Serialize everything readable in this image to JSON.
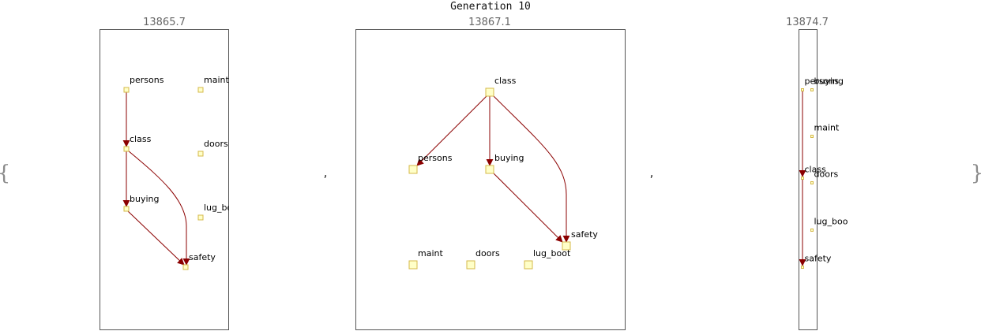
{
  "title": "Generation 10",
  "brace_open": "{",
  "brace_close": "}",
  "separator": ",",
  "colors": {
    "edge": "#8b0000",
    "node_fill": "#ffffc8",
    "node_stroke": "#d4b84a",
    "frame": "#555555"
  },
  "panels": [
    {
      "score": "13865.7",
      "nodes": [
        {
          "id": "persons",
          "label": "persons"
        },
        {
          "id": "maint",
          "label": "maint"
        },
        {
          "id": "class",
          "label": "class"
        },
        {
          "id": "doors",
          "label": "doors"
        },
        {
          "id": "buying",
          "label": "buying"
        },
        {
          "id": "lug_boot",
          "label": "lug_boo"
        },
        {
          "id": "safety",
          "label": "safety"
        }
      ],
      "edges": [
        {
          "from": "persons",
          "to": "class"
        },
        {
          "from": "class",
          "to": "buying"
        },
        {
          "from": "class",
          "to": "safety"
        },
        {
          "from": "buying",
          "to": "safety"
        }
      ]
    },
    {
      "score": "13867.1",
      "nodes": [
        {
          "id": "class",
          "label": "class"
        },
        {
          "id": "persons",
          "label": "persons"
        },
        {
          "id": "buying",
          "label": "buying"
        },
        {
          "id": "safety",
          "label": "safety"
        },
        {
          "id": "maint",
          "label": "maint"
        },
        {
          "id": "doors",
          "label": "doors"
        },
        {
          "id": "lug_boot",
          "label": "lug_boot"
        }
      ],
      "edges": [
        {
          "from": "class",
          "to": "persons"
        },
        {
          "from": "class",
          "to": "buying"
        },
        {
          "from": "class",
          "to": "safety"
        },
        {
          "from": "buying",
          "to": "safety"
        }
      ]
    },
    {
      "score": "13874.7",
      "nodes": [
        {
          "id": "persons",
          "label": "persons"
        },
        {
          "id": "buying",
          "label": "buying"
        },
        {
          "id": "maint",
          "label": "maint"
        },
        {
          "id": "class",
          "label": "class"
        },
        {
          "id": "doors",
          "label": "doors"
        },
        {
          "id": "lug_boot",
          "label": "lug_boo"
        },
        {
          "id": "safety",
          "label": "safety"
        }
      ],
      "edges": [
        {
          "from": "persons",
          "to": "class"
        },
        {
          "from": "class",
          "to": "safety"
        }
      ]
    }
  ]
}
